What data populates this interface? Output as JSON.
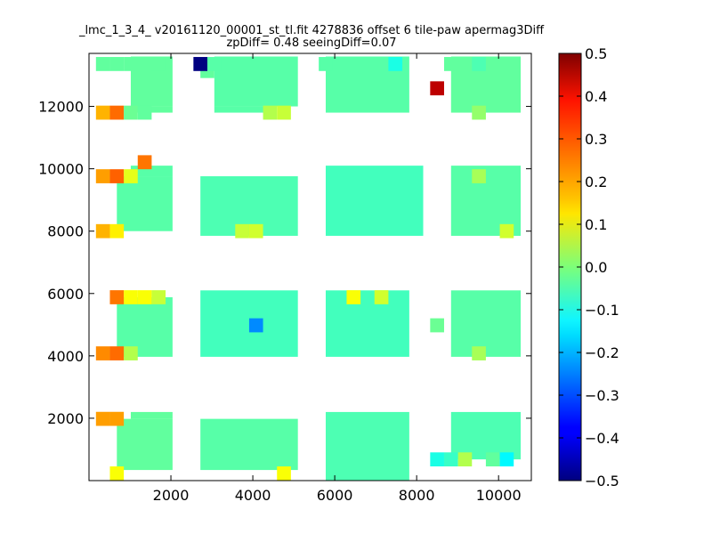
{
  "chart_data": {
    "type": "heatmap",
    "title_lines": [
      "_lmc_1_3_4_ v20161120_00001_st_tl.fit 4278836 offset 6 tile-paw apermag3Diff",
      "zpDiff= 0.48 seeingDiff=0.07"
    ],
    "xlabel": "",
    "ylabel": "",
    "xlim": [
      0,
      10800
    ],
    "ylim": [
      0,
      13700
    ],
    "x_ticks": [
      2000,
      4000,
      6000,
      8000,
      10000
    ],
    "y_ticks": [
      2000,
      4000,
      6000,
      8000,
      10000,
      12000
    ],
    "x_tick_labels": [
      "2000",
      "4000",
      "6000",
      "8000",
      "10000"
    ],
    "y_tick_labels": [
      "2000",
      "4000",
      "6000",
      "8000",
      "10000",
      "12000"
    ],
    "cell_size": [
      340,
      450
    ],
    "colorbar": {
      "colormap": "jet",
      "range": [
        -0.5,
        0.5
      ],
      "ticks": [
        0.5,
        0.4,
        0.3,
        0.2,
        0.1,
        0.0,
        -0.1,
        -0.2,
        -0.3,
        -0.4,
        -0.5
      ],
      "tick_labels": [
        "0.5",
        "0.4",
        "0.3",
        "0.2",
        "0.1",
        "0.0",
        "−0.1",
        "−0.2",
        "−0.3",
        "−0.4",
        "−0.5"
      ]
    },
    "grid": false,
    "cells": [
      {
        "x": 340,
        "y": 13360,
        "v": -0.03
      },
      {
        "x": 680,
        "y": 13360,
        "v": -0.03
      },
      {
        "x": 1020,
        "y": 13360,
        "v": -0.03
      },
      {
        "x": 1700,
        "y": 13360,
        "v": -0.03
      },
      {
        "x": 2720,
        "y": 13360,
        "v": -0.5
      },
      {
        "x": 3060,
        "y": 13360,
        "v": -0.04
      },
      {
        "x": 5780,
        "y": 13360,
        "v": -0.04
      },
      {
        "x": 7480,
        "y": 13360,
        "v": -0.1
      },
      {
        "x": 8840,
        "y": 13360,
        "v": -0.03
      },
      {
        "x": 9520,
        "y": 13360,
        "v": -0.05
      },
      {
        "x": 8500,
        "y": 12580,
        "v": 0.44
      },
      {
        "x": 340,
        "y": 11800,
        "v": 0.2
      },
      {
        "x": 680,
        "y": 11800,
        "v": 0.27
      },
      {
        "x": 1020,
        "y": 11800,
        "v": -0.02
      },
      {
        "x": 1360,
        "y": 11800,
        "v": -0.03
      },
      {
        "x": 4420,
        "y": 11800,
        "v": 0.05
      },
      {
        "x": 4760,
        "y": 11800,
        "v": 0.07
      },
      {
        "x": 9520,
        "y": 11800,
        "v": 0.02
      },
      {
        "x": 1360,
        "y": 10210,
        "v": 0.26
      },
      {
        "x": 340,
        "y": 9760,
        "v": 0.22
      },
      {
        "x": 680,
        "y": 9760,
        "v": 0.28
      },
      {
        "x": 1020,
        "y": 9760,
        "v": 0.1
      },
      {
        "x": 9520,
        "y": 9760,
        "v": 0.04
      },
      {
        "x": 340,
        "y": 8000,
        "v": 0.2
      },
      {
        "x": 680,
        "y": 8000,
        "v": 0.14
      },
      {
        "x": 3740,
        "y": 8000,
        "v": 0.07
      },
      {
        "x": 4080,
        "y": 8000,
        "v": 0.08
      },
      {
        "x": 10200,
        "y": 8000,
        "v": 0.08
      },
      {
        "x": 680,
        "y": 5880,
        "v": 0.26
      },
      {
        "x": 1020,
        "y": 5880,
        "v": 0.12
      },
      {
        "x": 1360,
        "y": 5880,
        "v": 0.12
      },
      {
        "x": 1700,
        "y": 5880,
        "v": 0.07
      },
      {
        "x": 6460,
        "y": 5880,
        "v": 0.12
      },
      {
        "x": 7140,
        "y": 5880,
        "v": 0.08
      },
      {
        "x": 4080,
        "y": 4980,
        "v": -0.24
      },
      {
        "x": 8500,
        "y": 4980,
        "v": -0.02
      },
      {
        "x": 340,
        "y": 4080,
        "v": 0.24
      },
      {
        "x": 680,
        "y": 4080,
        "v": 0.27
      },
      {
        "x": 1020,
        "y": 4080,
        "v": 0.05
      },
      {
        "x": 9520,
        "y": 4080,
        "v": 0.04
      },
      {
        "x": 340,
        "y": 1980,
        "v": 0.22
      },
      {
        "x": 680,
        "y": 1980,
        "v": 0.22
      },
      {
        "x": 8500,
        "y": 680,
        "v": -0.1
      },
      {
        "x": 8840,
        "y": 680,
        "v": -0.07
      },
      {
        "x": 9180,
        "y": 680,
        "v": 0.05
      },
      {
        "x": 9860,
        "y": 680,
        "v": -0.03
      },
      {
        "x": 10200,
        "y": 680,
        "v": -0.13
      },
      {
        "x": 4760,
        "y": 230,
        "v": 0.12
      },
      {
        "x": 680,
        "y": 230,
        "v": 0.12
      }
    ],
    "regions": [
      {
        "x0": 1020,
        "x1": 2040,
        "y0": 12000,
        "y1": 13600,
        "v": -0.03
      },
      {
        "x0": 1020,
        "y0": 11800,
        "x1": 2040,
        "y1": 12000,
        "v": -0.03
      },
      {
        "x0": 2720,
        "x1": 3060,
        "y0": 12910,
        "y1": 13360,
        "v": -0.03
      },
      {
        "x0": 3060,
        "x1": 5100,
        "y0": 12000,
        "y1": 13600,
        "v": -0.04
      },
      {
        "x0": 3060,
        "x1": 4420,
        "y0": 11800,
        "y1": 12000,
        "v": -0.04
      },
      {
        "x0": 5780,
        "x1": 7820,
        "y0": 11800,
        "y1": 13600,
        "v": -0.04
      },
      {
        "x0": 8840,
        "x1": 10540,
        "y0": 11800,
        "y1": 13600,
        "v": -0.03
      },
      {
        "x0": 680,
        "x1": 2040,
        "y0": 8000,
        "y1": 9760,
        "v": -0.04
      },
      {
        "x0": 1020,
        "x1": 2040,
        "y0": 9760,
        "y1": 10100,
        "v": -0.04
      },
      {
        "x0": 2720,
        "x1": 5100,
        "y0": 7850,
        "y1": 9760,
        "v": -0.05
      },
      {
        "x0": 5780,
        "x1": 8160,
        "y0": 7850,
        "y1": 10100,
        "v": -0.06
      },
      {
        "x0": 8840,
        "x1": 10540,
        "y0": 7850,
        "y1": 10100,
        "v": -0.04
      },
      {
        "x0": 680,
        "x1": 2040,
        "y0": 3970,
        "y1": 5880,
        "v": -0.04
      },
      {
        "x0": 2720,
        "x1": 5100,
        "y0": 3970,
        "y1": 6100,
        "v": -0.06
      },
      {
        "x0": 5780,
        "x1": 7820,
        "y0": 3970,
        "y1": 6100,
        "v": -0.06
      },
      {
        "x0": 8840,
        "x1": 10540,
        "y0": 3970,
        "y1": 6100,
        "v": -0.04
      },
      {
        "x0": 680,
        "x1": 2040,
        "y0": 340,
        "y1": 1980,
        "v": -0.03
      },
      {
        "x0": 1020,
        "x1": 2040,
        "y0": 1980,
        "y1": 2200,
        "v": -0.03
      },
      {
        "x0": 2720,
        "x1": 5100,
        "y0": 340,
        "y1": 1980,
        "v": -0.04
      },
      {
        "x0": 5780,
        "x1": 7820,
        "y0": 0,
        "y1": 2200,
        "v": -0.05
      },
      {
        "x0": 8840,
        "x1": 10540,
        "y0": 680,
        "y1": 2200,
        "v": -0.05
      }
    ]
  }
}
